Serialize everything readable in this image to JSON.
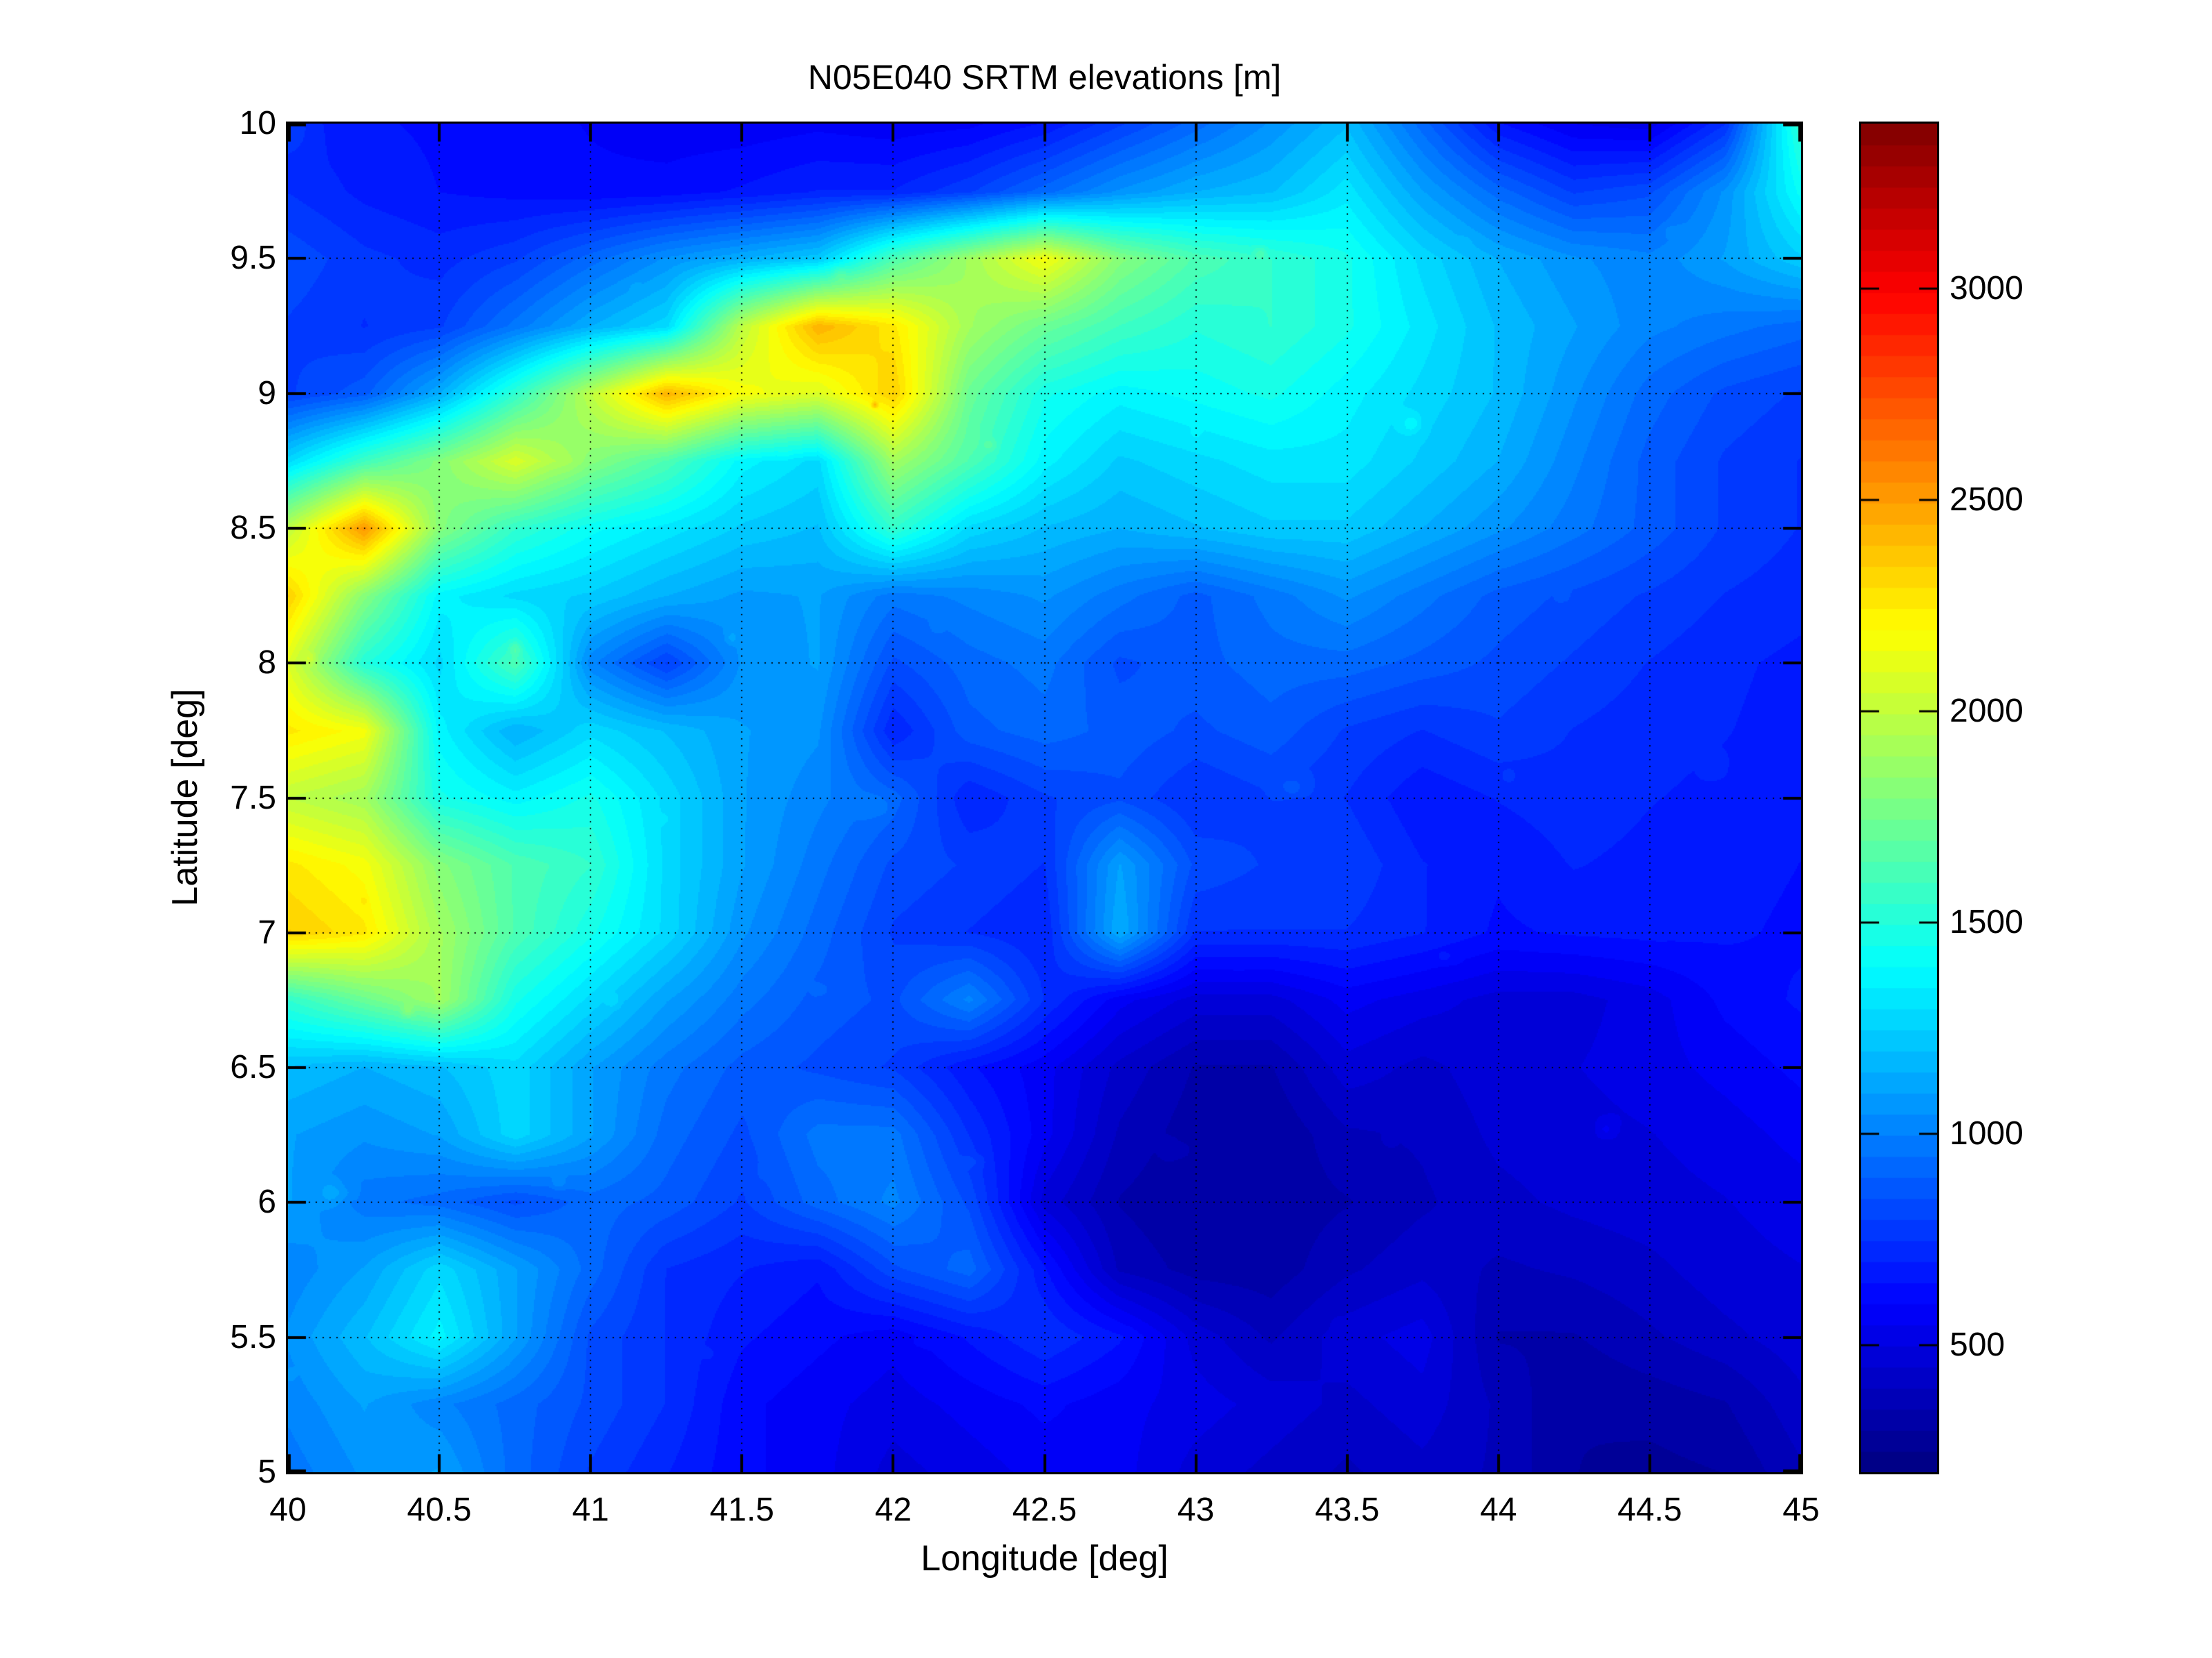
{
  "figure": {
    "title": "N05E040 SRTM elevations [m]",
    "xlabel": "Longitude [deg]",
    "ylabel": "Latitude [deg]",
    "background": "#ffffff"
  },
  "axes": {
    "xlim": [
      40,
      45
    ],
    "ylim": [
      5,
      10
    ],
    "x_ticks": [
      40,
      40.5,
      41,
      41.5,
      42,
      42.5,
      43,
      43.5,
      44,
      44.5,
      45
    ],
    "x_tick_labels": [
      "40",
      "40.5",
      "41",
      "41.5",
      "42",
      "42.5",
      "43",
      "43.5",
      "44",
      "44.5",
      "45"
    ],
    "y_ticks": [
      5,
      5.5,
      6,
      6.5,
      7,
      7.5,
      8,
      8.5,
      9,
      9.5,
      10
    ],
    "y_tick_labels": [
      "5",
      "5.5",
      "6",
      "6.5",
      "7",
      "7.5",
      "8",
      "8.5",
      "9",
      "9.5",
      "10"
    ],
    "grid": "dotted",
    "grid_color": "#000000"
  },
  "colorbar": {
    "ticks": [
      500,
      1000,
      1500,
      2000,
      2500,
      3000
    ],
    "tick_labels": [
      "500",
      "1000",
      "1500",
      "2000",
      "2500",
      "3000"
    ],
    "range": [
      200,
      3390
    ],
    "colormap": "jet",
    "levels": 64
  },
  "chart_data": {
    "type": "heatmap",
    "title": "N05E040 SRTM elevations [m]",
    "xlabel": "Longitude [deg]",
    "ylabel": "Latitude [deg]",
    "unit": "m",
    "colormap": "jet",
    "levels": 64,
    "clim": [
      200,
      3390
    ],
    "xlim": [
      40,
      45
    ],
    "ylim": [
      5,
      10
    ],
    "x": [
      40,
      40.25,
      40.5,
      40.75,
      41,
      41.25,
      41.5,
      41.75,
      42,
      42.25,
      42.5,
      42.75,
      43,
      43.25,
      43.5,
      43.75,
      44,
      44.25,
      44.5,
      44.75,
      45
    ],
    "y": [
      10,
      9.75,
      9.5,
      9.25,
      9,
      8.75,
      8.5,
      8.25,
      8,
      7.75,
      7.5,
      7.25,
      7,
      6.75,
      6.5,
      6.25,
      6,
      5.75,
      5.5,
      5.25,
      5
    ],
    "elevation_grid": [
      [
        850,
        800,
        780,
        760,
        730,
        700,
        700,
        720,
        700,
        720,
        800,
        950,
        1100,
        1250,
        1400,
        1100,
        800,
        680,
        650,
        900,
        1800
      ],
      [
        900,
        830,
        790,
        770,
        750,
        760,
        800,
        850,
        850,
        950,
        1100,
        1250,
        1350,
        1400,
        1550,
        1300,
        1100,
        950,
        1000,
        1250,
        1650
      ],
      [
        1000,
        920,
        880,
        950,
        1100,
        1250,
        1350,
        1450,
        1900,
        2200,
        2500,
        2100,
        1900,
        1800,
        1700,
        1500,
        1350,
        1250,
        1200,
        1300,
        1450
      ],
      [
        950,
        900,
        950,
        1150,
        1350,
        1500,
        2300,
        2800,
        2600,
        2200,
        2000,
        1850,
        1750,
        1800,
        1700,
        1550,
        1400,
        1300,
        1200,
        1150,
        1100
      ],
      [
        950,
        1050,
        1350,
        1800,
        2300,
        2800,
        2500,
        2400,
        2700,
        2000,
        1700,
        1600,
        1650,
        1700,
        1600,
        1500,
        1400,
        1250,
        1100,
        1000,
        950
      ],
      [
        1500,
        1850,
        2100,
        2400,
        2100,
        1900,
        1600,
        1500,
        2200,
        1900,
        1600,
        1450,
        1500,
        1550,
        1550,
        1450,
        1350,
        1200,
        1050,
        950,
        900
      ],
      [
        2300,
        2900,
        2100,
        1800,
        1650,
        1550,
        1450,
        1400,
        1800,
        1500,
        1400,
        1350,
        1400,
        1450,
        1450,
        1350,
        1250,
        1150,
        1050,
        950,
        900
      ],
      [
        2700,
        2100,
        1600,
        1500,
        1450,
        1350,
        1280,
        1300,
        1150,
        1200,
        1250,
        1150,
        1050,
        1150,
        1250,
        1150,
        1050,
        1000,
        950,
        900,
        870
      ],
      [
        2400,
        1750,
        1500,
        1900,
        1200,
        950,
        1250,
        1300,
        1000,
        1100,
        1150,
        1000,
        1050,
        1100,
        1100,
        1050,
        1000,
        950,
        900,
        860,
        830
      ],
      [
        2600,
        2500,
        1600,
        1350,
        1500,
        1400,
        1300,
        1250,
        850,
        1050,
        1100,
        1050,
        1000,
        1050,
        950,
        900,
        950,
        900,
        870,
        850,
        820
      ],
      [
        2300,
        2200,
        1700,
        1600,
        1700,
        1500,
        1300,
        1200,
        1100,
        850,
        950,
        1000,
        900,
        950,
        900,
        800,
        850,
        880,
        850,
        830,
        800
      ],
      [
        2600,
        2500,
        2100,
        1900,
        1800,
        1500,
        1300,
        1150,
        1000,
        950,
        900,
        1300,
        1000,
        950,
        950,
        850,
        800,
        850,
        830,
        810,
        790
      ],
      [
        2700,
        2600,
        2200,
        1900,
        1700,
        1500,
        1250,
        1100,
        950,
        900,
        850,
        1350,
        900,
        900,
        900,
        850,
        780,
        800,
        810,
        800,
        780
      ],
      [
        1800,
        2000,
        2200,
        1700,
        1500,
        1300,
        1150,
        1050,
        1000,
        1200,
        900,
        700,
        600,
        600,
        700,
        650,
        600,
        600,
        650,
        750,
        800
      ],
      [
        1400,
        1350,
        1400,
        1500,
        1300,
        1150,
        1050,
        1000,
        950,
        800,
        700,
        550,
        450,
        450,
        600,
        550,
        600,
        620,
        650,
        700,
        750
      ],
      [
        1300,
        1250,
        1300,
        1500,
        1300,
        1100,
        1000,
        1150,
        1150,
        900,
        700,
        500,
        420,
        400,
        500,
        520,
        580,
        600,
        620,
        650,
        700
      ],
      [
        1300,
        1150,
        1100,
        1000,
        1100,
        1050,
        950,
        1100,
        1200,
        1000,
        600,
        450,
        400,
        420,
        450,
        500,
        550,
        580,
        600,
        620,
        650
      ],
      [
        1200,
        1300,
        1500,
        1300,
        1100,
        900,
        850,
        800,
        1000,
        1100,
        800,
        500,
        430,
        420,
        500,
        550,
        500,
        520,
        550,
        600,
        620
      ],
      [
        1250,
        1400,
        1600,
        1300,
        1000,
        900,
        800,
        750,
        700,
        800,
        900,
        800,
        600,
        500,
        600,
        650,
        450,
        450,
        500,
        550,
        600
      ],
      [
        1200,
        1300,
        1200,
        1100,
        1000,
        900,
        750,
        700,
        650,
        700,
        750,
        700,
        650,
        600,
        550,
        600,
        500,
        400,
        420,
        450,
        550
      ],
      [
        1150,
        1250,
        1300,
        1100,
        950,
        850,
        750,
        700,
        600,
        650,
        700,
        700,
        600,
        550,
        500,
        550,
        500,
        400,
        380,
        400,
        500
      ]
    ],
    "colorbar_ticks": [
      500,
      1000,
      1500,
      2000,
      2500,
      3000
    ],
    "legend_position": "right"
  }
}
